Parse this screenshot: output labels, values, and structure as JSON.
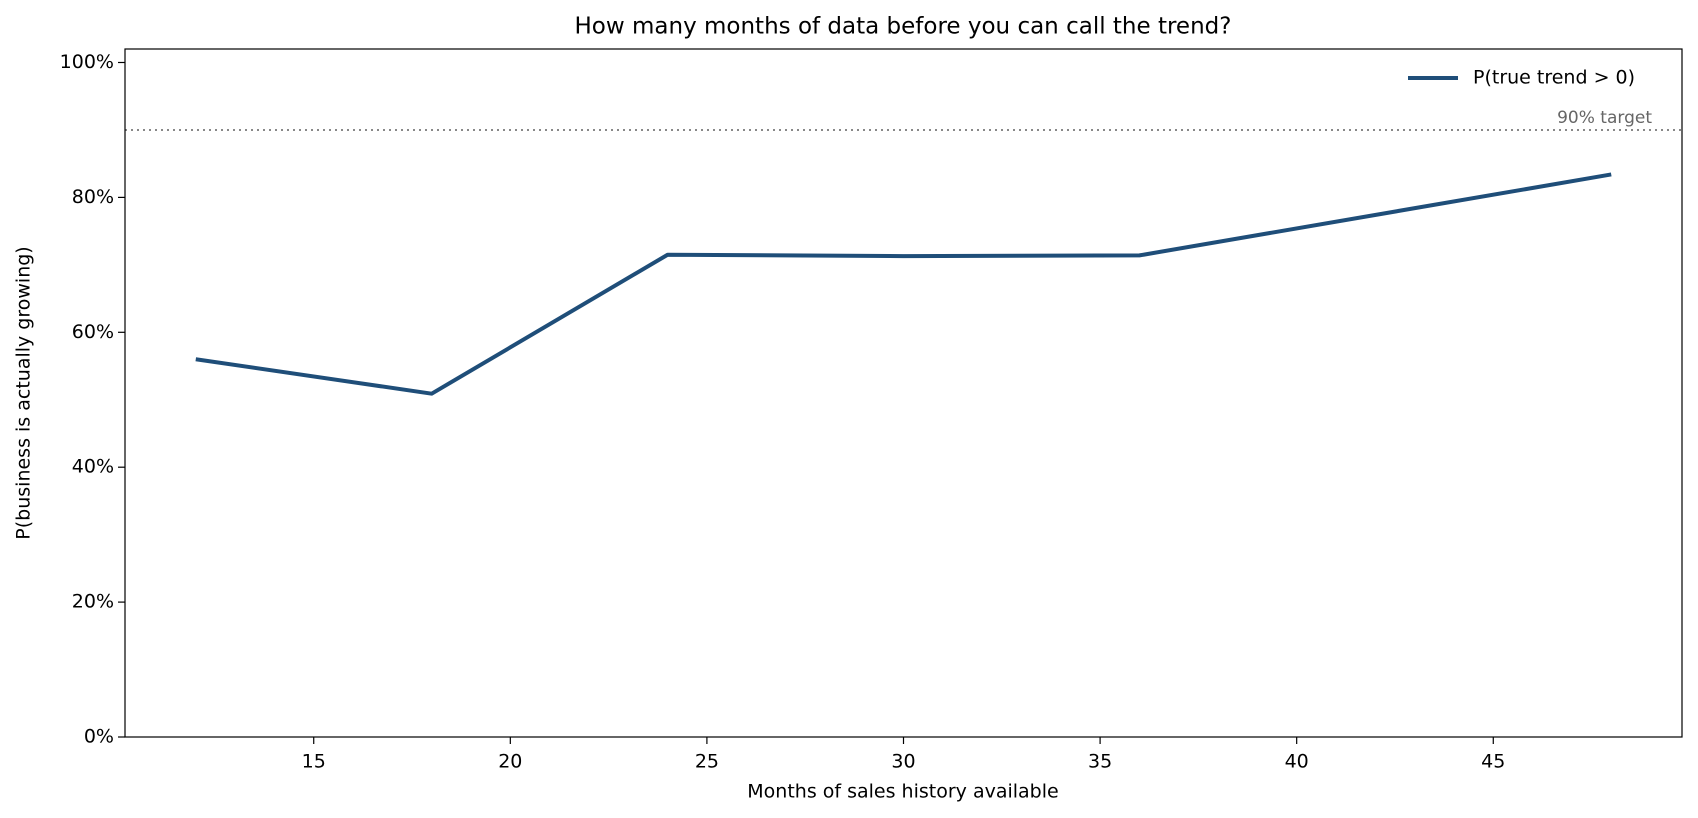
{
  "chart_data": {
    "type": "line",
    "title": "How many months of data before you can call the trend?",
    "x_label": "Months of sales history available",
    "y_label": "P(business is actually growing)",
    "x": [
      12,
      18,
      24,
      30,
      36,
      48
    ],
    "series": [
      {
        "name": "P(true trend > 0)",
        "color": "#1f4e79",
        "values": [
          56.0,
          50.9,
          71.5,
          71.3,
          71.4,
          83.4
        ]
      }
    ],
    "xlim": [
      10.2,
      49.8
    ],
    "xticks": [
      15,
      20,
      25,
      30,
      35,
      40,
      45
    ],
    "ylim": [
      0,
      102
    ],
    "yticks": [
      {
        "value": 0,
        "label": "0%"
      },
      {
        "value": 20,
        "label": "20%"
      },
      {
        "value": 40,
        "label": "40%"
      },
      {
        "value": 60,
        "label": "60%"
      },
      {
        "value": 80,
        "label": "80%"
      },
      {
        "value": 100,
        "label": "100%"
      }
    ],
    "reference_line": {
      "value": 90,
      "label": "90% target",
      "color": "#888888"
    },
    "legend": "upper right",
    "grid": false
  }
}
